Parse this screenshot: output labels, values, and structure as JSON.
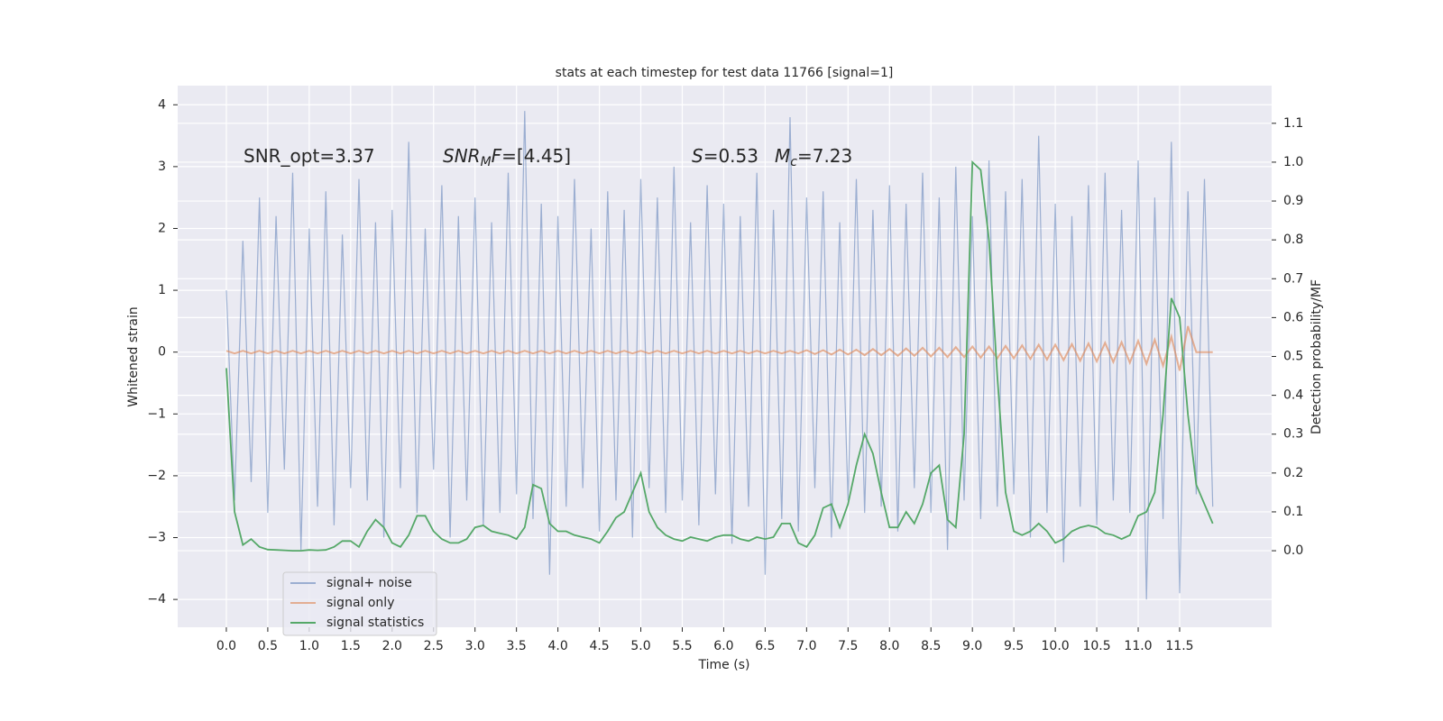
{
  "chart_data": {
    "type": "line",
    "title": "stats at each timestep for test data 11766 [signal=1]",
    "xlabel": "Time (s)",
    "ylabel": "Whitened strain",
    "y2label": "Detection probability/MF",
    "annotations": [
      [
        {
          "text": "SNR_opt=3.37"
        }
      ],
      [
        {
          "text": "SNR",
          "italic": true
        },
        {
          "text": "M",
          "italic": true,
          "sub": true
        },
        {
          "text": "F",
          "italic": true
        },
        {
          "text": "=[4.45]"
        }
      ],
      [
        {
          "text": "S",
          "italic": true
        },
        {
          "text": "=0.53"
        }
      ],
      [
        {
          "text": "M",
          "italic": true
        },
        {
          "text": "c",
          "italic": true,
          "sub": true
        },
        {
          "text": "=7.23"
        }
      ]
    ],
    "xlim": [
      -0.587,
      12.61
    ],
    "ylim": [
      -4.45,
      4.31
    ],
    "y2lim": [
      -0.197,
      1.197
    ],
    "xticks": [
      {
        "value": 0,
        "label": "0.0"
      },
      0.5,
      {
        "value": 1,
        "label": "1.0"
      },
      1.5,
      {
        "value": 2,
        "label": "2.0"
      },
      2.5,
      {
        "value": 3,
        "label": "3.0"
      },
      3.5,
      {
        "value": 4,
        "label": "4.0"
      },
      4.5,
      {
        "value": 5,
        "label": "5.0"
      },
      5.5,
      {
        "value": 6,
        "label": "6.0"
      },
      6.5,
      {
        "value": 7,
        "label": "7.0"
      },
      7.5,
      {
        "value": 8,
        "label": "8.0"
      },
      8.5,
      {
        "value": 9,
        "label": "9.0"
      },
      9.5,
      {
        "value": 10,
        "label": "10.0"
      },
      10.5,
      {
        "value": 11,
        "label": "11.0"
      },
      11.5
    ],
    "yticks": [
      {
        "value": -4,
        "label": "−4"
      },
      {
        "value": -3,
        "label": "−3"
      },
      {
        "value": -2,
        "label": "−2"
      },
      {
        "value": -1,
        "label": "−1"
      },
      0,
      1,
      2,
      3,
      4
    ],
    "y2ticks": [
      {
        "value": 0,
        "label": "0.0"
      },
      0.1,
      0.2,
      0.3,
      0.4,
      0.5,
      0.6,
      0.7,
      0.8,
      0.9,
      {
        "value": 1,
        "label": "1.0"
      },
      1.1
    ],
    "grid": true,
    "legend": "lower left",
    "x": [
      0,
      0.1,
      0.2,
      0.3,
      0.4,
      0.5,
      0.6,
      0.7,
      0.8,
      0.9,
      1,
      1.1,
      1.2,
      1.3,
      1.4,
      1.5,
      1.6,
      1.7,
      1.8,
      1.9,
      2,
      2.1,
      2.2,
      2.3,
      2.4,
      2.5,
      2.6,
      2.7,
      2.8,
      2.9,
      3,
      3.1,
      3.2,
      3.3,
      3.4,
      3.5,
      3.6,
      3.7,
      3.8,
      3.9,
      4,
      4.1,
      4.2,
      4.3,
      4.4,
      4.5,
      4.6,
      4.7,
      4.8,
      4.9,
      5,
      5.1,
      5.2,
      5.3,
      5.4,
      5.5,
      5.6,
      5.7,
      5.8,
      5.9,
      6,
      6.1,
      6.2,
      6.3,
      6.4,
      6.5,
      6.6,
      6.7,
      6.8,
      6.9,
      7,
      7.1,
      7.2,
      7.3,
      7.4,
      7.5,
      7.6,
      7.7,
      7.8,
      7.9,
      8,
      8.1,
      8.2,
      8.3,
      8.4,
      8.5,
      8.6,
      8.7,
      8.8,
      8.9,
      9,
      9.1,
      9.2,
      9.3,
      9.4,
      9.5,
      9.6,
      9.7,
      9.8,
      9.9,
      10,
      10.1,
      10.2,
      10.3,
      10.4,
      10.5,
      10.6,
      10.7,
      10.8,
      10.9,
      11,
      11.1,
      11.2,
      11.3,
      11.4,
      11.5,
      11.6,
      11.7,
      11.8,
      11.9
    ],
    "series": [
      {
        "name": "signal+ noise",
        "color": "#4c72b0",
        "values": [
          1.0,
          -2.4,
          1.8,
          -2.1,
          2.5,
          -2.6,
          2.2,
          -1.9,
          2.9,
          -3.2,
          2.0,
          -2.5,
          2.6,
          -2.8,
          1.9,
          -2.2,
          2.8,
          -2.4,
          2.1,
          -3.0,
          2.3,
          -2.2,
          3.4,
          -2.6,
          2.0,
          -1.9,
          2.7,
          -3.0,
          2.2,
          -2.4,
          2.5,
          -2.8,
          2.1,
          -2.6,
          2.9,
          -2.3,
          3.9,
          -2.7,
          2.4,
          -3.6,
          2.2,
          -2.5,
          2.8,
          -2.2,
          2.0,
          -2.9,
          2.6,
          -2.4,
          2.3,
          -3.0,
          2.8,
          -2.2,
          2.5,
          -2.6,
          3.0,
          -2.4,
          2.1,
          -2.8,
          2.7,
          -2.3,
          2.4,
          -3.1,
          2.2,
          -2.5,
          2.9,
          -3.6,
          2.3,
          -2.7,
          3.8,
          -2.9,
          2.5,
          -2.2,
          2.6,
          -3.0,
          2.1,
          -2.4,
          2.8,
          -2.6,
          2.3,
          -2.5,
          2.7,
          -2.9,
          2.4,
          -2.2,
          2.9,
          -2.6,
          2.5,
          -3.2,
          3.0,
          -2.4,
          2.2,
          -2.7,
          3.1,
          -2.5,
          2.6,
          -2.3,
          2.8,
          -3.0,
          3.5,
          -2.6,
          2.4,
          -3.4,
          2.2,
          -2.5,
          2.7,
          -2.8,
          2.9,
          -2.4,
          2.3,
          -2.6,
          3.1,
          -4.0,
          2.5,
          -2.7,
          3.4,
          -3.9,
          2.6,
          -2.3,
          2.8,
          -2.5
        ]
      },
      {
        "name": "signal only",
        "color": "#dd8452",
        "values": [
          0.02,
          -0.02,
          0.02,
          -0.02,
          0.02,
          -0.02,
          0.02,
          -0.02,
          0.02,
          -0.02,
          0.02,
          -0.02,
          0.02,
          -0.02,
          0.02,
          -0.02,
          0.02,
          -0.02,
          0.02,
          -0.02,
          0.02,
          -0.02,
          0.02,
          -0.02,
          0.02,
          -0.02,
          0.02,
          -0.02,
          0.02,
          -0.02,
          0.02,
          -0.02,
          0.02,
          -0.02,
          0.02,
          -0.02,
          0.02,
          -0.02,
          0.02,
          -0.02,
          0.02,
          -0.02,
          0.02,
          -0.02,
          0.02,
          -0.02,
          0.02,
          -0.02,
          0.02,
          -0.02,
          0.02,
          -0.02,
          0.02,
          -0.02,
          0.02,
          -0.02,
          0.02,
          -0.02,
          0.02,
          -0.02,
          0.02,
          -0.02,
          0.02,
          -0.02,
          0.02,
          -0.02,
          0.02,
          -0.02,
          0.02,
          -0.02,
          0.03,
          -0.03,
          0.03,
          -0.04,
          0.04,
          -0.04,
          0.04,
          -0.05,
          0.05,
          -0.05,
          0.05,
          -0.06,
          0.06,
          -0.06,
          0.07,
          -0.07,
          0.07,
          -0.08,
          0.08,
          -0.08,
          0.09,
          -0.09,
          0.09,
          -0.1,
          0.1,
          -0.1,
          0.11,
          -0.11,
          0.12,
          -0.12,
          0.12,
          -0.13,
          0.13,
          -0.14,
          0.14,
          -0.15,
          0.15,
          -0.16,
          0.16,
          -0.17,
          0.18,
          -0.19,
          0.2,
          -0.22,
          0.25,
          -0.3,
          0.42,
          0,
          0,
          0
        ]
      },
      {
        "name": "signal statistics",
        "color": "#55a868",
        "axis": "y2",
        "values": [
          0.47,
          0.1,
          0.015,
          0.03,
          0.01,
          0.003,
          0.002,
          0.001,
          0,
          0,
          0.002,
          0.001,
          0.002,
          0.01,
          0.025,
          0.025,
          0.01,
          0.05,
          0.08,
          0.06,
          0.02,
          0.01,
          0.04,
          0.09,
          0.09,
          0.05,
          0.03,
          0.02,
          0.02,
          0.03,
          0.06,
          0.065,
          0.05,
          0.045,
          0.04,
          0.03,
          0.06,
          0.17,
          0.16,
          0.07,
          0.05,
          0.05,
          0.04,
          0.035,
          0.03,
          0.02,
          0.05,
          0.085,
          0.1,
          0.15,
          0.2,
          0.1,
          0.06,
          0.04,
          0.03,
          0.025,
          0.035,
          0.03,
          0.025,
          0.035,
          0.04,
          0.04,
          0.03,
          0.025,
          0.035,
          0.03,
          0.035,
          0.07,
          0.07,
          0.02,
          0.01,
          0.04,
          0.11,
          0.12,
          0.06,
          0.12,
          0.22,
          0.3,
          0.25,
          0.15,
          0.06,
          0.06,
          0.1,
          0.07,
          0.12,
          0.2,
          0.22,
          0.08,
          0.06,
          0.3,
          1.0,
          0.98,
          0.8,
          0.45,
          0.15,
          0.05,
          0.04,
          0.05,
          0.07,
          0.05,
          0.02,
          0.03,
          0.05,
          0.06,
          0.065,
          0.06,
          0.045,
          0.04,
          0.03,
          0.04,
          0.09,
          0.1,
          0.15,
          0.35,
          0.65,
          0.6,
          0.35,
          0.17,
          0.12,
          0.07
        ]
      }
    ]
  }
}
